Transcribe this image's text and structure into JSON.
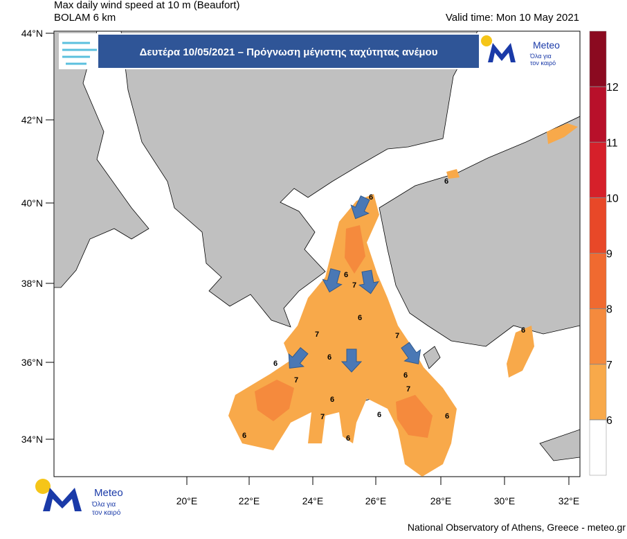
{
  "header": {
    "title_line1": "Max daily wind speed at 10 m (Beaufort)",
    "title_line2": "BOLAM 6 km",
    "valid_time": "Valid time: Mon 10 May 2021"
  },
  "banner": {
    "text": "Δευτέρα 10/05/2021 – Πρόγνωση μέγιστης ταχύτητας ανέμου"
  },
  "logo": {
    "name": "Meteo",
    "tagline_1": "Όλα για",
    "tagline_2": "τον καιρό"
  },
  "map": {
    "lat_labels": [
      "44°N",
      "42°N",
      "40°N",
      "38°N",
      "36°N",
      "34°N"
    ],
    "lon_labels": [
      "20°E",
      "22°E",
      "24°E",
      "26°E",
      "28°E",
      "30°E",
      "32°E"
    ],
    "contour_labels": [
      "6",
      "6",
      "6",
      "7",
      "7",
      "7",
      "6",
      "6",
      "7",
      "6",
      "6",
      "6",
      "7",
      "6",
      "6",
      "7",
      "6",
      "6",
      "6"
    ]
  },
  "colorbar": {
    "levels": [
      6,
      7,
      8,
      9,
      10,
      11,
      12
    ],
    "colors": [
      "#ffffff",
      "#f8a94a",
      "#f58a3d",
      "#f06a30",
      "#e84828",
      "#d6202a",
      "#b8102a",
      "#8b0a20"
    ]
  },
  "footer": "National Observatory of Athens, Greece - meteo.gr"
}
